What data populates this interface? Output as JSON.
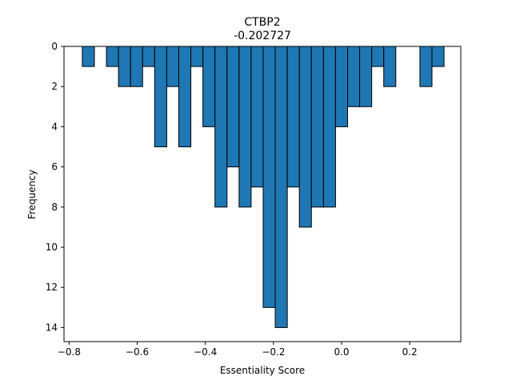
{
  "chart_data": {
    "type": "bar",
    "title": "CTBP2",
    "subtitle": "-0.202727",
    "xlabel": "Essentiality Score",
    "ylabel": "Frequency",
    "xlim": [
      -0.815,
      0.35
    ],
    "ylim": [
      0,
      14.7
    ],
    "y_inverted": true,
    "grid": false,
    "bar_color": "#1f77b4",
    "edge_color": "#000000",
    "bin_width": 0.0354,
    "x_ticks": [
      -0.8,
      -0.6,
      -0.4,
      -0.2,
      0.0,
      0.2
    ],
    "x_tick_labels": [
      "−0.8",
      "−0.6",
      "−0.4",
      "−0.2",
      "0.0",
      "0.2"
    ],
    "y_ticks": [
      0,
      2,
      4,
      6,
      8,
      10,
      12,
      14
    ],
    "y_tick_labels": [
      "0",
      "2",
      "4",
      "6",
      "8",
      "10",
      "12",
      "14"
    ],
    "bin_starts": [
      -0.7612,
      -0.7258,
      -0.6904,
      -0.655,
      -0.6196,
      -0.5842,
      -0.5488,
      -0.5134,
      -0.478,
      -0.4426,
      -0.4072,
      -0.3718,
      -0.3364,
      -0.301,
      -0.2656,
      -0.2302,
      -0.1948,
      -0.1594,
      -0.124,
      -0.0886,
      -0.0532,
      -0.0178,
      0.0176,
      0.053,
      0.0884,
      0.1238,
      0.1592,
      0.1946,
      0.23,
      0.2654
    ],
    "values": [
      1,
      0,
      1,
      2,
      2,
      1,
      5,
      2,
      5,
      1,
      4,
      8,
      6,
      8,
      7,
      13,
      14,
      7,
      9,
      8,
      8,
      4,
      3,
      3,
      1,
      2,
      0,
      0,
      2,
      1
    ]
  }
}
